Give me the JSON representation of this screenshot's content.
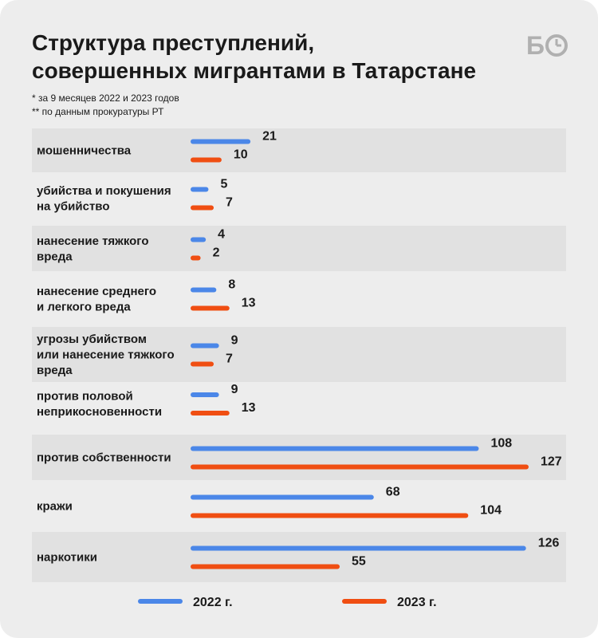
{
  "title": [
    "Структура преступлений,",
    "совершенных мигрантами в Татарстане"
  ],
  "notes": [
    "* за 9 месяцев 2022 и 2023 годов",
    "** по данным прокуратуры РТ"
  ],
  "logo": "БО",
  "colors": {
    "s2022": "#4b87e8",
    "s2023": "#f04e12",
    "band": "#e1e1e1"
  },
  "chart_data": {
    "type": "bar",
    "orientation": "horizontal",
    "categories": [
      [
        "мошенничества"
      ],
      [
        "убийства и покушения",
        "на убийство"
      ],
      [
        "нанесение тяжкого",
        "вреда"
      ],
      [
        "нанесение среднего",
        "и легкого вреда"
      ],
      [
        "угрозы убийством",
        "или нанесение тяжкого",
        "вреда"
      ],
      [
        "против половой",
        "неприкосновенности"
      ],
      [
        "против собственности"
      ],
      [
        "кражи"
      ],
      [
        "наркотики"
      ]
    ],
    "series": [
      {
        "name": "2022 г.",
        "values": [
          21,
          5,
          4,
          8,
          9,
          9,
          108,
          68,
          126
        ]
      },
      {
        "name": "2023 г.",
        "values": [
          10,
          7,
          2,
          13,
          7,
          13,
          127,
          104,
          55
        ]
      }
    ],
    "legend_position": "bottom"
  }
}
